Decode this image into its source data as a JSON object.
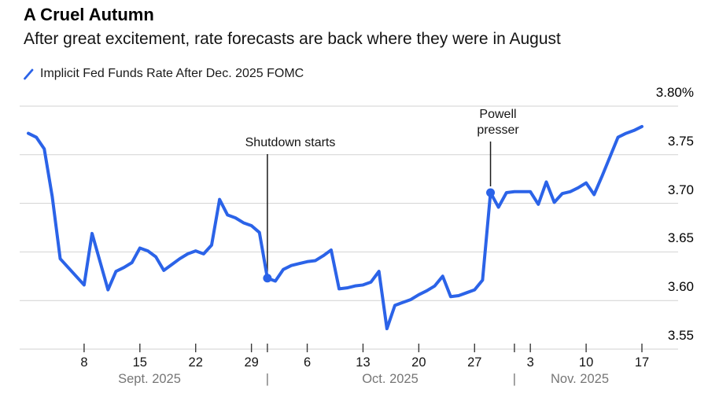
{
  "header": {
    "title": "A Cruel Autumn",
    "subtitle": "After great excitement, rate forecasts are back where they were in August"
  },
  "legend": {
    "label": "Implicit Fed Funds Rate After Dec. 2025 FOMC",
    "marker": "blue-slash-line",
    "color": "#2b63e8"
  },
  "chart_data": {
    "type": "line",
    "series_name": "Implicit Fed Funds Rate After Dec. 2025 FOMC",
    "unit": "%",
    "grid": true,
    "legend_position": "top-left",
    "line_color": "#2b63e8",
    "grid_color": "#d2d2d2",
    "ylim": [
      3.55,
      3.8
    ],
    "x": [
      "2025-09-01",
      "2025-09-02",
      "2025-09-03",
      "2025-09-04",
      "2025-09-05",
      "2025-09-06",
      "2025-09-07",
      "2025-09-08",
      "2025-09-09",
      "2025-09-10",
      "2025-09-11",
      "2025-09-12",
      "2025-09-13",
      "2025-09-14",
      "2025-09-15",
      "2025-09-16",
      "2025-09-17",
      "2025-09-18",
      "2025-09-19",
      "2025-09-20",
      "2025-09-21",
      "2025-09-22",
      "2025-09-23",
      "2025-09-24",
      "2025-09-25",
      "2025-09-26",
      "2025-09-27",
      "2025-09-28",
      "2025-09-29",
      "2025-09-30",
      "2025-10-01",
      "2025-10-02",
      "2025-10-03",
      "2025-10-04",
      "2025-10-05",
      "2025-10-06",
      "2025-10-07",
      "2025-10-08",
      "2025-10-09",
      "2025-10-10",
      "2025-10-11",
      "2025-10-12",
      "2025-10-13",
      "2025-10-14",
      "2025-10-15",
      "2025-10-16",
      "2025-10-17",
      "2025-10-18",
      "2025-10-19",
      "2025-10-20",
      "2025-10-21",
      "2025-10-22",
      "2025-10-23",
      "2025-10-24",
      "2025-10-25",
      "2025-10-26",
      "2025-10-27",
      "2025-10-28",
      "2025-10-29",
      "2025-10-30",
      "2025-10-31",
      "2025-11-01",
      "2025-11-02",
      "2025-11-03",
      "2025-11-04",
      "2025-11-05",
      "2025-11-06",
      "2025-11-07",
      "2025-11-08",
      "2025-11-09",
      "2025-11-10",
      "2025-11-11",
      "2025-11-12",
      "2025-11-13",
      "2025-11-14",
      "2025-11-15",
      "2025-11-16",
      "2025-11-17"
    ],
    "values": [
      3.772,
      3.768,
      3.756,
      3.707,
      3.643,
      3.634,
      3.625,
      3.616,
      3.669,
      3.64,
      3.611,
      3.63,
      3.634,
      3.639,
      3.654,
      3.651,
      3.645,
      3.631,
      3.637,
      3.643,
      3.648,
      3.651,
      3.648,
      3.657,
      3.704,
      3.688,
      3.685,
      3.68,
      3.677,
      3.67,
      3.623,
      3.62,
      3.632,
      3.636,
      3.638,
      3.64,
      3.641,
      3.646,
      3.652,
      3.612,
      3.613,
      3.615,
      3.616,
      3.619,
      3.63,
      3.571,
      3.595,
      3.598,
      3.601,
      3.606,
      3.61,
      3.615,
      3.625,
      3.604,
      3.605,
      3.608,
      3.611,
      3.621,
      3.711,
      3.696,
      3.711,
      3.712,
      3.712,
      3.712,
      3.699,
      3.722,
      3.701,
      3.71,
      3.712,
      3.716,
      3.721,
      3.709,
      3.728,
      3.748,
      3.768,
      3.772,
      3.775,
      3.779
    ],
    "y_ticks": [
      {
        "value": 3.8,
        "label": "3.80%"
      },
      {
        "value": 3.75,
        "label": "3.75"
      },
      {
        "value": 3.7,
        "label": "3.70"
      },
      {
        "value": 3.65,
        "label": "3.65"
      },
      {
        "value": 3.6,
        "label": "3.60"
      },
      {
        "value": 3.55,
        "label": "3.55"
      }
    ],
    "x_ticks": [
      {
        "index": 7,
        "label": "8"
      },
      {
        "index": 14,
        "label": "15"
      },
      {
        "index": 21,
        "label": "22"
      },
      {
        "index": 28,
        "label": "29"
      },
      {
        "index": 35,
        "label": "6"
      },
      {
        "index": 42,
        "label": "13"
      },
      {
        "index": 49,
        "label": "20"
      },
      {
        "index": 56,
        "label": "27"
      },
      {
        "index": 63,
        "label": "3"
      },
      {
        "index": 70,
        "label": "10"
      },
      {
        "index": 77,
        "label": "17"
      }
    ],
    "month_boundaries": [
      {
        "index": 30
      },
      {
        "index": 61
      }
    ],
    "month_labels": [
      {
        "label": "Sept. 2025"
      },
      {
        "label": "Oct. 2025"
      },
      {
        "label": "Nov. 2025"
      }
    ],
    "separator": "|",
    "annotations": [
      {
        "label": "Shutdown starts",
        "date": "2025-10-01",
        "index": 30,
        "value": 3.623
      },
      {
        "label": "Powell\npresser",
        "date": "2025-10-29",
        "index": 58,
        "value": 3.711
      }
    ]
  }
}
